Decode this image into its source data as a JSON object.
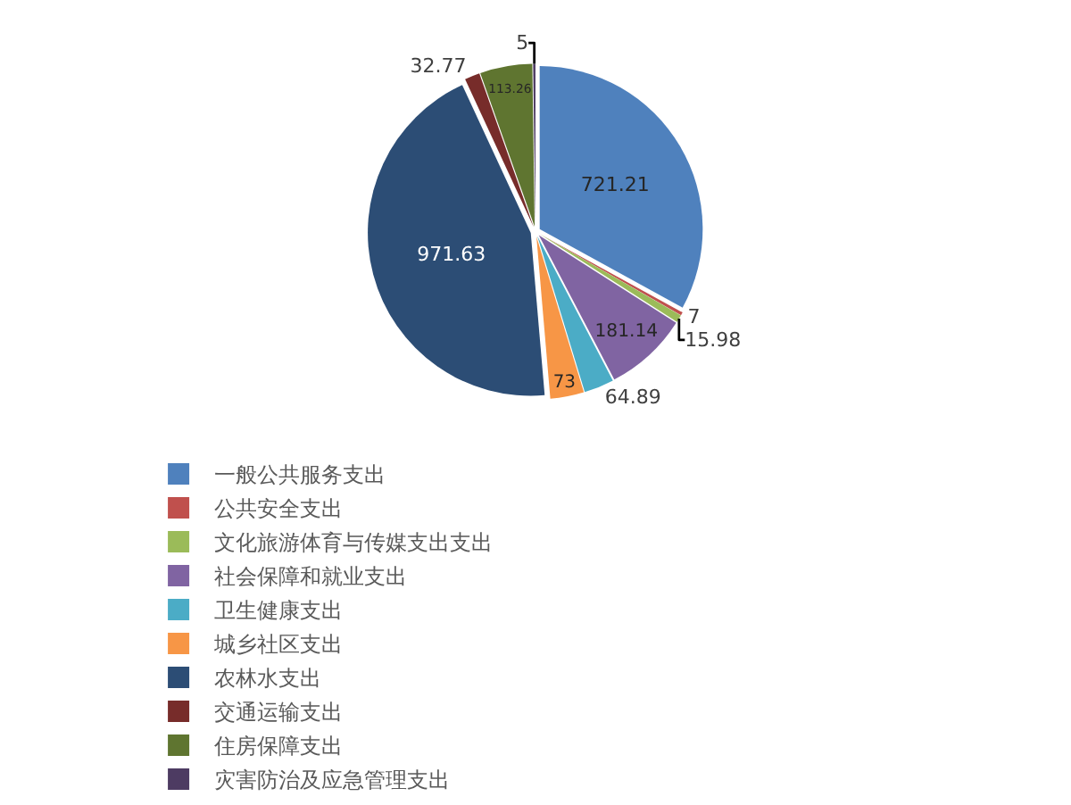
{
  "chart_data": {
    "type": "pie",
    "categories": [
      "一般公共服务支出",
      "公共安全支出",
      "文化旅游体育与传媒支出支出",
      "社会保障和就业支出",
      "卫生健康支出",
      "城乡社区支出",
      "农林水支出",
      "交通运输支出",
      "住房保障支出",
      "灾害防治及应急管理支出"
    ],
    "values": [
      721.21,
      7,
      15.98,
      181.14,
      64.89,
      73,
      971.63,
      32.77,
      113.26,
      5
    ],
    "colors": [
      "#4f81bd",
      "#c0504d",
      "#9bbb59",
      "#8064a2",
      "#4bacc6",
      "#f79646",
      "#2c4d75",
      "#772c2a",
      "#5f7530",
      "#4d3b62"
    ],
    "data_labels": true,
    "legend": "bottom"
  }
}
